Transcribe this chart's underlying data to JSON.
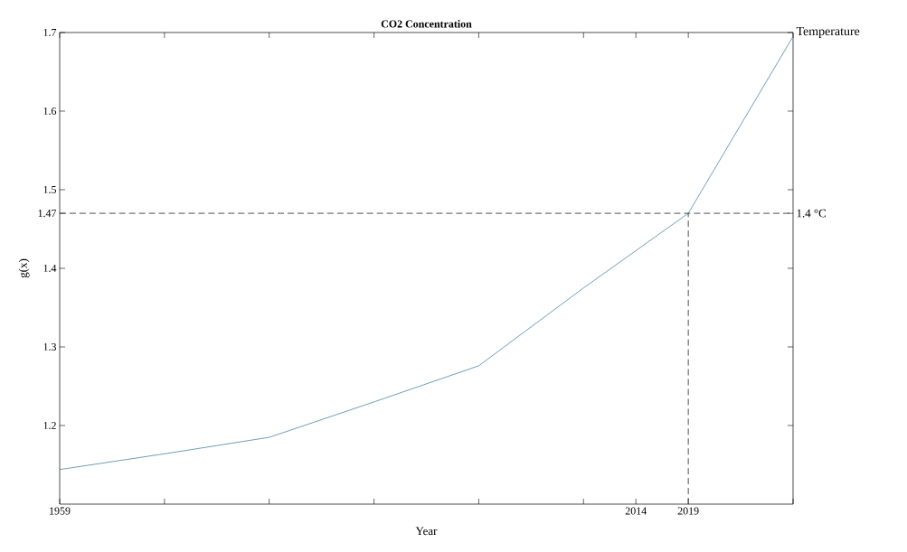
{
  "chart_data": {
    "type": "line",
    "title": "CO2 Concentration",
    "xlabel": "Year",
    "ylabel": "g(x)",
    "y2label": "Temperature",
    "x": [
      1959,
      1969,
      1979,
      1989,
      1999,
      2009,
      2019,
      2029
    ],
    "series": [
      {
        "color": "#4a87a8",
        "values": [
          1.144,
          1.164,
          1.185,
          1.23,
          1.276,
          1.375,
          1.47,
          1.695
        ]
      }
    ],
    "xlim": [
      1959,
      2029
    ],
    "xticks": [
      1959,
      {
        "value": 1969,
        "label": null
      },
      {
        "value": 1979,
        "label": null
      },
      {
        "value": 1989,
        "label": null
      },
      {
        "value": 1999,
        "label": null
      },
      {
        "value": 2009,
        "label": null
      },
      2014,
      2019,
      {
        "value": 2029,
        "label": null
      }
    ],
    "ylim": [
      1.1,
      1.7
    ],
    "yticks": [
      1.2,
      1.3,
      1.4,
      1.47,
      1.5,
      1.6,
      1.7
    ],
    "ref_lines": [
      {
        "axis": "y",
        "value": 1.47,
        "label": "1.4 °C",
        "line_style": "dashed"
      },
      {
        "axis": "x",
        "value": 2019,
        "line_style": "dashed"
      }
    ],
    "grid": false,
    "marker": "none",
    "line_style": "solid"
  }
}
